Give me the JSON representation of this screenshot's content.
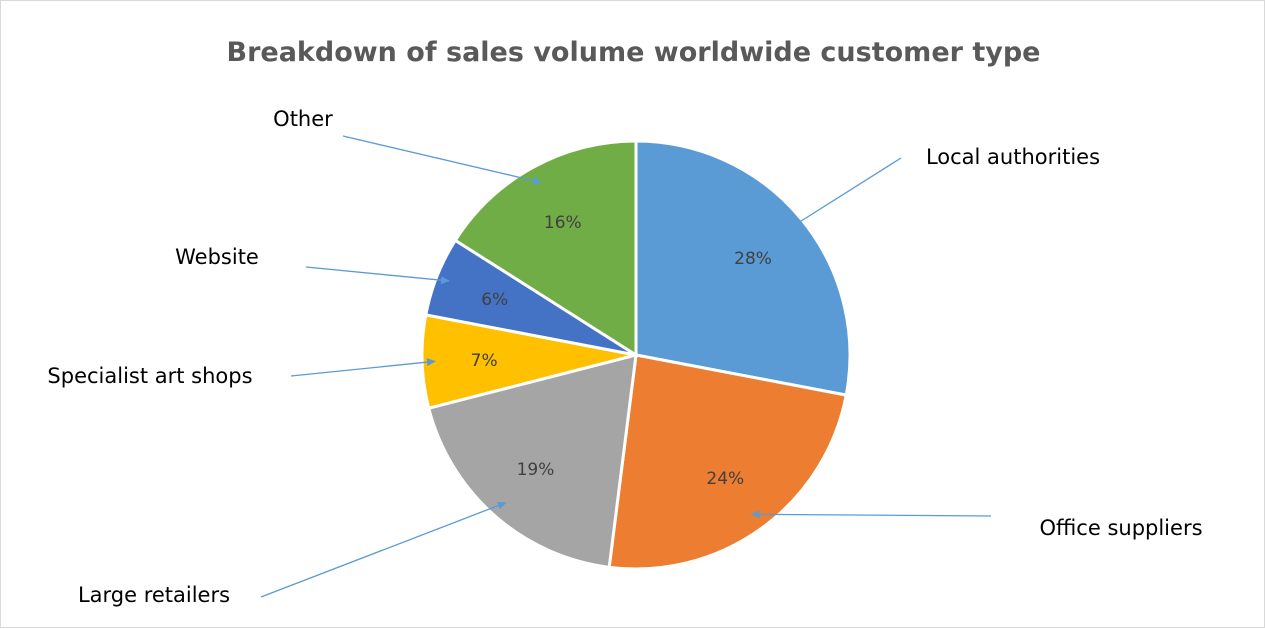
{
  "chart_data": {
    "type": "pie",
    "title": "Breakdown of  sales volume worldwide customer type",
    "slices": [
      {
        "label": "Local authorities",
        "value": 28,
        "display": "28%",
        "color": "#5b9bd5"
      },
      {
        "label": "Office suppliers",
        "value": 24,
        "display": "24%",
        "color": "#ed7d31"
      },
      {
        "label": "Large retailers",
        "value": 19,
        "display": "19%",
        "color": "#a5a5a5"
      },
      {
        "label": "Specialist art shops",
        "value": 7,
        "display": "7%",
        "color": "#ffc000"
      },
      {
        "label": "Website",
        "value": 6,
        "display": "6%",
        "color": "#4472c4"
      },
      {
        "label": "Other",
        "value": 16,
        "display": "16%",
        "color": "#70ad47"
      }
    ],
    "start_angle": "12 o'clock",
    "direction": "clockwise",
    "legend": "none",
    "data_labels": "inside, percent",
    "category_labels": "outside with arrow leader lines"
  }
}
